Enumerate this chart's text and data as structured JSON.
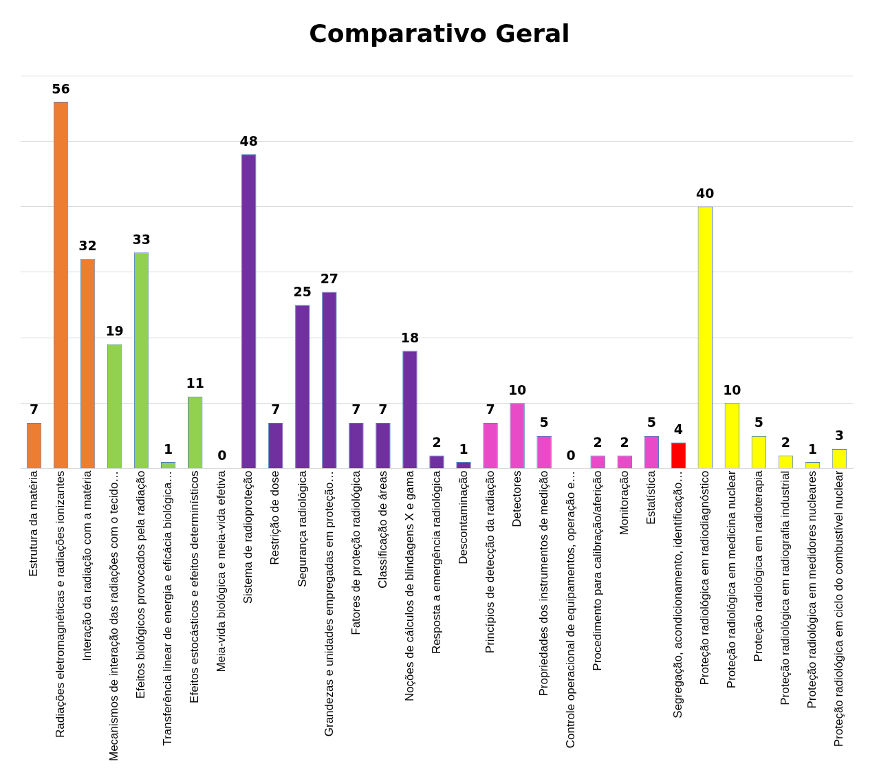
{
  "chart_data": {
    "type": "bar",
    "title": "Comparativo Geral",
    "categories": [
      "Estrutura da matéria",
      "Radiações eletromagnéticas e radiações ionizantes",
      "Interação da radiação com a matéria",
      "Mecanismos de interação das radiações com o tecido…",
      "Efeitos biológicos provocados pela radiação",
      "Transferência linear de energia e eficácia biológica…",
      "Efeitos estocásticos e efeitos determinísticos",
      "Meia-vida biológica e meia-vida efetiva",
      "Sistema de radioproteção",
      "Restrição de dose",
      "Segurança radiológica",
      "Grandezas e unidades empregadas em proteção…",
      "Fatores de proteção radiológica",
      "Classificação de áreas",
      "Noções de cálculos de blindagens X e gama",
      "Resposta a emergência radiológica",
      "Descontaminação",
      "Princípios de detecção da radiação",
      "Detectores",
      "Propriedades dos instrumentos de medição",
      "Controle operacional de equipamentos, operação e…",
      "Procedimento para calibração/aferição",
      "Monitoração",
      "Estatística",
      "Segregação, acondicionamento, identificação…",
      "Proteção radiológica em radiodiagnóstico",
      "Proteção radiológica em medicina nuclear",
      "Proteção radiológica em radioterapia",
      "Proteção radiológica em radiografia industrial",
      "Proteção radiológica em medidores nucleares",
      "Proteção radiológica em ciclo do combustível nuclear"
    ],
    "values": [
      7,
      56,
      32,
      19,
      33,
      1,
      11,
      0,
      48,
      7,
      25,
      27,
      7,
      7,
      18,
      2,
      1,
      7,
      10,
      5,
      0,
      2,
      2,
      5,
      4,
      40,
      10,
      5,
      2,
      1,
      3
    ],
    "colors": [
      "#ed7d31",
      "#ed7d31",
      "#ed7d31",
      "#92d050",
      "#92d050",
      "#92d050",
      "#92d050",
      "#92d050",
      "#7030a0",
      "#7030a0",
      "#7030a0",
      "#7030a0",
      "#7030a0",
      "#7030a0",
      "#7030a0",
      "#7030a0",
      "#7030a0",
      "#e94bc8",
      "#e94bc8",
      "#e94bc8",
      "#e94bc8",
      "#e94bc8",
      "#e94bc8",
      "#e94bc8",
      "#ff0000",
      "#ffff00",
      "#ffff00",
      "#ffff00",
      "#ffff00",
      "#ffff00",
      "#ffff00"
    ],
    "ylim": [
      0,
      60
    ],
    "yticks": [
      {
        "value": 0,
        "label": null
      },
      {
        "value": 10,
        "label": null
      },
      {
        "value": 20,
        "label": null
      },
      {
        "value": 30,
        "label": null
      },
      {
        "value": 40,
        "label": null
      },
      {
        "value": 50,
        "label": null
      },
      {
        "value": 60,
        "label": null
      }
    ],
    "tick_labels": "x",
    "grid": "y",
    "legend": false,
    "data_labels": true
  }
}
